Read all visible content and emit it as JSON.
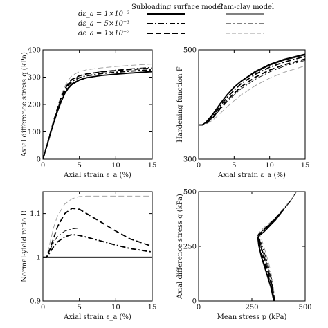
{
  "legend": {
    "col_headers": [
      "Subloading surface model",
      "Cam-clay model"
    ],
    "rows": [
      {
        "label": "dε_a = 1×10⁻³",
        "style": "solid"
      },
      {
        "label": "dε_a = 5×10⁻³",
        "style": "dashdot"
      },
      {
        "label": "dε_a = 1×10⁻²",
        "style": "dashed"
      }
    ]
  },
  "chart_data": [
    {
      "type": "line",
      "xlabel": "Axial strain ε_a  (%)",
      "ylabel": "Axial difference stress q (kPa)",
      "xlim": [
        0,
        15
      ],
      "ylim": [
        0,
        400
      ],
      "xticks": [
        0,
        5,
        10,
        15
      ],
      "yticks": [
        0,
        100,
        200,
        300,
        400
      ],
      "series": [
        {
          "model": "subloading",
          "rate": "1e-3",
          "style": "solid",
          "x": [
            0,
            0.5,
            1,
            1.5,
            2,
            2.5,
            3,
            3.5,
            4,
            5,
            6,
            8,
            10,
            12,
            15
          ],
          "y": [
            0,
            45,
            90,
            135,
            175,
            210,
            240,
            262,
            276,
            290,
            298,
            306,
            311,
            315,
            320
          ]
        },
        {
          "model": "subloading",
          "rate": "5e-3",
          "style": "dashdot",
          "x": [
            0,
            0.5,
            1,
            1.5,
            2,
            2.5,
            3,
            3.5,
            4,
            5,
            6,
            8,
            10,
            12,
            15
          ],
          "y": [
            0,
            45,
            92,
            138,
            180,
            218,
            248,
            270,
            285,
            298,
            305,
            313,
            318,
            322,
            327
          ]
        },
        {
          "model": "subloading",
          "rate": "1e-2",
          "style": "dashed",
          "x": [
            0,
            0.5,
            1,
            1.5,
            2,
            2.5,
            3,
            3.5,
            4,
            5,
            6,
            8,
            10,
            12,
            15
          ],
          "y": [
            0,
            46,
            94,
            142,
            186,
            225,
            256,
            278,
            292,
            305,
            312,
            319,
            324,
            328,
            333
          ]
        },
        {
          "model": "cam-clay",
          "rate": "1e-3",
          "style": "solid",
          "x": [
            0,
            0.5,
            1,
            1.5,
            2,
            2.5,
            3,
            3.5,
            4,
            5,
            6,
            8,
            10,
            12,
            15
          ],
          "y": [
            0,
            45,
            90,
            135,
            175,
            210,
            238,
            258,
            272,
            288,
            297,
            306,
            312,
            316,
            322
          ]
        },
        {
          "model": "cam-clay",
          "rate": "5e-3",
          "style": "dashdot",
          "x": [
            0,
            0.5,
            1,
            1.5,
            2,
            2.5,
            3,
            3.5,
            4,
            5,
            6,
            8,
            10,
            12,
            15
          ],
          "y": [
            0,
            46,
            93,
            140,
            183,
            222,
            252,
            274,
            290,
            304,
            312,
            320,
            326,
            331,
            336
          ]
        },
        {
          "model": "cam-clay",
          "rate": "1e-2",
          "style": "dashed",
          "x": [
            0,
            0.5,
            1,
            1.5,
            2,
            2.5,
            3,
            3.5,
            4,
            5,
            6,
            8,
            10,
            12,
            15
          ],
          "y": [
            0,
            47,
            96,
            146,
            192,
            234,
            266,
            290,
            306,
            320,
            327,
            334,
            339,
            343,
            348
          ]
        }
      ]
    },
    {
      "type": "line",
      "xlabel": "Axial strain ε_a  (%)",
      "ylabel": "Hardening function F",
      "log_y": true,
      "xlim": [
        0,
        15
      ],
      "ylim": [
        300,
        500
      ],
      "xticks": [
        0,
        5,
        10,
        15
      ],
      "yticks": [
        300,
        500
      ],
      "series": [
        {
          "model": "subloading",
          "rate": "1e-3",
          "style": "solid",
          "x": [
            0,
            0.5,
            1,
            2,
            3,
            4,
            5,
            6,
            8,
            10,
            12,
            15
          ],
          "y": [
            352,
            352,
            356,
            370,
            388,
            405,
            420,
            432,
            452,
            467,
            478,
            490
          ]
        },
        {
          "model": "subloading",
          "rate": "5e-3",
          "style": "dashdot",
          "x": [
            0,
            0.5,
            1,
            2,
            3,
            4,
            5,
            6,
            8,
            10,
            12,
            15
          ],
          "y": [
            352,
            352,
            355,
            367,
            384,
            400,
            414,
            427,
            446,
            461,
            472,
            485
          ]
        },
        {
          "model": "subloading",
          "rate": "1e-2",
          "style": "dashed",
          "x": [
            0,
            0.5,
            1,
            2,
            3,
            4,
            5,
            6,
            8,
            10,
            12,
            15
          ],
          "y": [
            352,
            352,
            354,
            364,
            380,
            395,
            408,
            421,
            440,
            455,
            466,
            479
          ]
        },
        {
          "model": "cam-clay",
          "rate": "1e-3",
          "style": "solid",
          "x": [
            0,
            0.5,
            1,
            2,
            3,
            4,
            5,
            6,
            8,
            10,
            12,
            15
          ],
          "y": [
            352,
            352,
            356,
            370,
            387,
            404,
            419,
            431,
            450,
            465,
            476,
            488
          ]
        },
        {
          "model": "cam-clay",
          "rate": "5e-3",
          "style": "dashdot",
          "x": [
            0,
            0.5,
            1,
            2,
            3,
            4,
            5,
            6,
            8,
            10,
            12,
            15
          ],
          "y": [
            352,
            352,
            354,
            364,
            378,
            392,
            405,
            417,
            436,
            451,
            463,
            476
          ]
        },
        {
          "model": "cam-clay",
          "rate": "1e-2",
          "style": "dashed",
          "x": [
            0,
            0.5,
            1,
            2,
            3,
            4,
            5,
            6,
            8,
            10,
            12,
            15
          ],
          "y": [
            352,
            352,
            353,
            360,
            371,
            383,
            394,
            405,
            423,
            438,
            450,
            464
          ]
        }
      ]
    },
    {
      "type": "line",
      "xlabel": "Axial strain ε_a  (%)",
      "ylabel": "Normal-yield ratio R",
      "xlim": [
        0,
        15
      ],
      "ylim": [
        0.9,
        1.15
      ],
      "xticks": [
        0,
        5,
        10,
        15
      ],
      "yticks": [
        0.9,
        1.0,
        1.1
      ],
      "series": [
        {
          "model": "subloading",
          "rate": "1e-3",
          "style": "solid",
          "x": [
            0,
            15
          ],
          "y": [
            1.0,
            1.0
          ]
        },
        {
          "model": "subloading",
          "rate": "5e-3",
          "style": "dashdot",
          "x": [
            0,
            0.5,
            1,
            1.5,
            2,
            3,
            4,
            5,
            6,
            8,
            10,
            12,
            15
          ],
          "y": [
            1.0,
            1.0,
            1.012,
            1.025,
            1.035,
            1.047,
            1.052,
            1.05,
            1.046,
            1.037,
            1.028,
            1.02,
            1.012
          ]
        },
        {
          "model": "subloading",
          "rate": "1e-2",
          "style": "dashed",
          "x": [
            0,
            0.5,
            1,
            1.5,
            2,
            3,
            4,
            5,
            6,
            8,
            10,
            12,
            15
          ],
          "y": [
            1.0,
            1.0,
            1.02,
            1.045,
            1.07,
            1.1,
            1.112,
            1.11,
            1.1,
            1.08,
            1.06,
            1.042,
            1.025
          ]
        },
        {
          "model": "cam-clay",
          "rate": "1e-3",
          "style": "solid",
          "x": [
            0,
            15
          ],
          "y": [
            1.0,
            1.0
          ]
        },
        {
          "model": "cam-clay",
          "rate": "5e-3",
          "style": "dashdot",
          "x": [
            0,
            0.5,
            1,
            1.5,
            2,
            3,
            4,
            5,
            6,
            8,
            10,
            12,
            15
          ],
          "y": [
            1.0,
            1.0,
            1.018,
            1.035,
            1.048,
            1.06,
            1.065,
            1.067,
            1.067,
            1.067,
            1.067,
            1.067,
            1.067
          ]
        },
        {
          "model": "cam-clay",
          "rate": "1e-2",
          "style": "dashed",
          "x": [
            0,
            0.5,
            1,
            1.5,
            2,
            3,
            4,
            5,
            6,
            8,
            10,
            12,
            15
          ],
          "y": [
            1.0,
            1.0,
            1.035,
            1.07,
            1.095,
            1.122,
            1.134,
            1.139,
            1.14,
            1.14,
            1.14,
            1.14,
            1.14
          ]
        }
      ]
    },
    {
      "type": "line",
      "xlabel": "Mean stress p (kPa)",
      "ylabel": "Axial difference stress q (kPa)",
      "xlim": [
        0,
        500
      ],
      "ylim": [
        0,
        500
      ],
      "xticks": [
        0,
        250,
        500
      ],
      "yticks": [
        0,
        250,
        500
      ],
      "series": [
        {
          "model": "subloading",
          "rate": "1e-3",
          "style": "solid",
          "x": [
            353,
            340,
            318,
            295,
            282,
            278,
            285,
            305,
            320,
            340,
            360,
            380,
            400
          ],
          "y": [
            0,
            60,
            130,
            200,
            255,
            290,
            300,
            315,
            330,
            350,
            370,
            395,
            420
          ]
        },
        {
          "model": "subloading",
          "rate": "5e-3",
          "style": "dashdot",
          "x": [
            355,
            343,
            322,
            300,
            286,
            280,
            287,
            305,
            320,
            340,
            360,
            380,
            400
          ],
          "y": [
            0,
            60,
            130,
            200,
            255,
            290,
            305,
            320,
            335,
            355,
            375,
            398,
            420
          ]
        },
        {
          "model": "subloading",
          "rate": "1e-2",
          "style": "dashed",
          "x": [
            357,
            346,
            327,
            306,
            291,
            283,
            289,
            306,
            320,
            340,
            360,
            380,
            400
          ],
          "y": [
            0,
            60,
            130,
            200,
            255,
            295,
            310,
            325,
            340,
            358,
            378,
            400,
            420
          ]
        },
        {
          "model": "cam-clay",
          "rate": "1e-3",
          "style": "solid",
          "x": [
            353,
            350,
            340,
            320,
            300,
            285,
            278,
            290,
            310,
            340,
            370,
            400,
            430,
            459
          ],
          "y": [
            0,
            40,
            100,
            170,
            230,
            275,
            300,
            312,
            330,
            355,
            385,
            420,
            455,
            500
          ]
        },
        {
          "model": "cam-clay",
          "rate": "5e-3",
          "style": "dashdot",
          "x": [
            355,
            352,
            343,
            325,
            306,
            290,
            280,
            292,
            312,
            342,
            372,
            402,
            432,
            459
          ],
          "y": [
            0,
            40,
            100,
            170,
            230,
            275,
            305,
            318,
            335,
            360,
            390,
            425,
            460,
            500
          ]
        },
        {
          "model": "cam-clay",
          "rate": "1e-2",
          "style": "dashed",
          "x": [
            357,
            354,
            346,
            330,
            312,
            296,
            284,
            294,
            314,
            344,
            374,
            404,
            434,
            459
          ],
          "y": [
            0,
            40,
            100,
            170,
            230,
            280,
            312,
            325,
            342,
            366,
            395,
            430,
            465,
            500
          ]
        }
      ]
    }
  ]
}
